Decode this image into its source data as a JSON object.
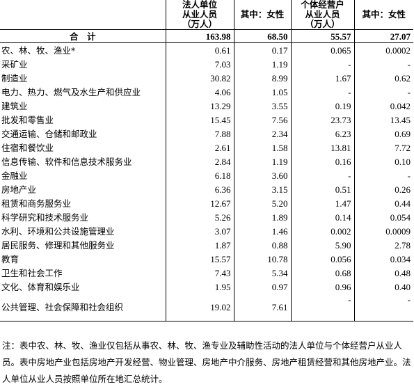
{
  "header": {
    "corp_employees": "法人单位\n从业人员\n（万人）",
    "corp_female": "其中：女性",
    "indiv_employees": "个体经营户\n从业人员\n（万人）",
    "indiv_female": "其中：女性"
  },
  "total": {
    "label": "合　计",
    "corp": "163.98",
    "corp_female": "68.50",
    "indiv": "55.57",
    "indiv_female": "27.07"
  },
  "rows": [
    {
      "label": "农、林、牧、渔业*",
      "corp": "0.61",
      "corp_female": "0.17",
      "indiv": "0.065",
      "indiv_female": "0.0002"
    },
    {
      "label": "采矿业",
      "corp": "7.03",
      "corp_female": "1.19",
      "indiv": "-",
      "indiv_female": "-"
    },
    {
      "label": "制造业",
      "corp": "30.82",
      "corp_female": "8.99",
      "indiv": "1.67",
      "indiv_female": "0.62"
    },
    {
      "label": "电力、热力、燃气及水生产和供应业",
      "corp": "4.06",
      "corp_female": "1.05",
      "indiv": "-",
      "indiv_female": "-"
    },
    {
      "label": "建筑业",
      "corp": "13.29",
      "corp_female": "3.55",
      "indiv": "0.19",
      "indiv_female": "0.042"
    },
    {
      "label": "批发和零售业",
      "corp": "15.45",
      "corp_female": "7.56",
      "indiv": "23.73",
      "indiv_female": "13.45"
    },
    {
      "label": "交通运输、仓储和邮政业",
      "corp": "7.88",
      "corp_female": "2.34",
      "indiv": "6.23",
      "indiv_female": "0.69"
    },
    {
      "label": "住宿和餐饮业",
      "corp": "2.61",
      "corp_female": "1.58",
      "indiv": "13.81",
      "indiv_female": "7.72"
    },
    {
      "label": "信息传输、软件和信息技术服务业",
      "corp": "2.84",
      "corp_female": "1.19",
      "indiv": "0.16",
      "indiv_female": "0.10"
    },
    {
      "label": "金融业",
      "corp": "6.18",
      "corp_female": "3.60",
      "indiv": "-",
      "indiv_female": "-"
    },
    {
      "label": "房地产业",
      "corp": "6.36",
      "corp_female": "3.15",
      "indiv": "0.51",
      "indiv_female": "0.26"
    },
    {
      "label": "租赁和商务服务业",
      "corp": "12.67",
      "corp_female": "5.20",
      "indiv": "1.47",
      "indiv_female": "0.44"
    },
    {
      "label": "科学研究和技术服务业",
      "corp": "5.26",
      "corp_female": "1.89",
      "indiv": "0.14",
      "indiv_female": "0.054"
    },
    {
      "label": "水利、环境和公共设施管理业",
      "corp": "3.07",
      "corp_female": "1.46",
      "indiv": "0.002",
      "indiv_female": "0.0009"
    },
    {
      "label": "居民服务、修理和其他服务业",
      "corp": "1.87",
      "corp_female": "0.88",
      "indiv": "5.90",
      "indiv_female": "2.78"
    },
    {
      "label": "教育",
      "corp": "15.57",
      "corp_female": "10.78",
      "indiv": "0.056",
      "indiv_female": "0.034"
    },
    {
      "label": "卫生和社会工作",
      "corp": "7.43",
      "corp_female": "5.34",
      "indiv": "0.68",
      "indiv_female": "0.48"
    },
    {
      "label": "文化、体育和娱乐业",
      "corp": "1.95",
      "corp_female": "0.97",
      "indiv": "0.96",
      "indiv_female": "0.40"
    }
  ],
  "last_row": {
    "label": "公共管理、社会保障和社会组织",
    "corp": "19.02",
    "corp_female": "7.61",
    "indiv": "-",
    "indiv_female": "-"
  },
  "note": "注：表中农、林、牧、渔业仅包括从事农、林、牧、渔专业及辅助性活动的法人单位与个体经营户从业人员。表中房地产业包括房地产开发经营、物业管理、房地产中介服务、房地产租赁经营和其他房地产业。法人单位从业人员按照单位所在地汇总统计。"
}
